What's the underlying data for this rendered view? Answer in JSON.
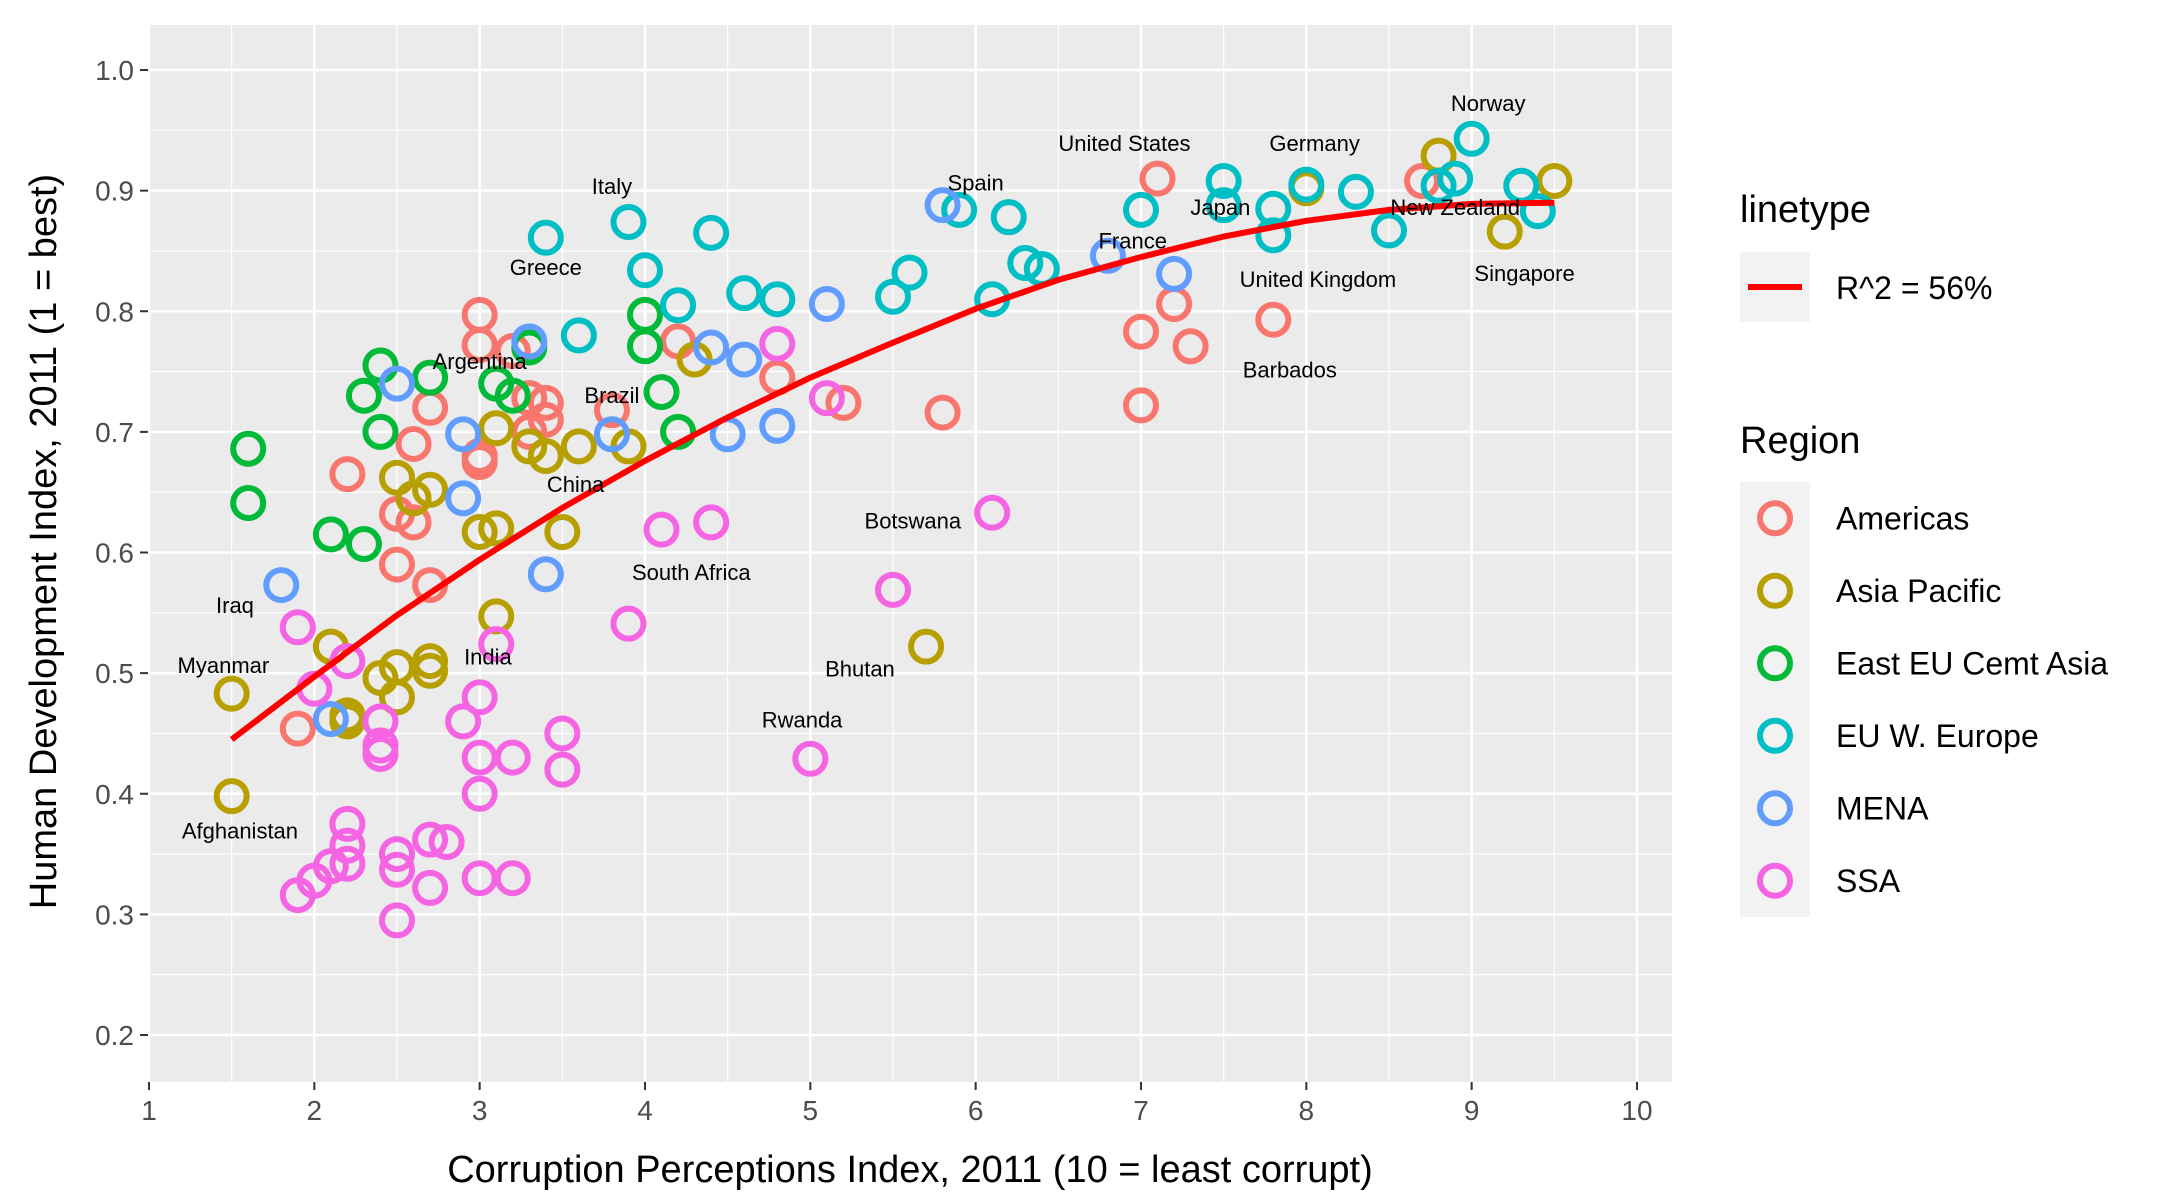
{
  "chart_data": {
    "type": "scatter",
    "xlabel": "Corruption Perceptions Index, 2011 (10 = least corrupt)",
    "ylabel": "Human Development Index, 2011 (1 = best)",
    "xlim": [
      1,
      10
    ],
    "ylim": [
      0.2,
      1.0
    ],
    "x_ticks": [
      "1",
      "2",
      "3",
      "4",
      "5",
      "6",
      "7",
      "8",
      "9",
      "10"
    ],
    "y_ticks": [
      "0.2",
      "0.3",
      "0.4",
      "0.5",
      "0.6",
      "0.7",
      "0.8",
      "0.9",
      "1.0"
    ],
    "grid": true,
    "legend_placement": "right",
    "linetype_legend": {
      "title": "linetype",
      "label": "R^2 = 56%",
      "color": "#ff0000"
    },
    "region_legend": {
      "title": "Region",
      "entries": [
        {
          "name": "Americas",
          "color": "#F8766D"
        },
        {
          "name": "Asia Pacific",
          "color": "#B79F00"
        },
        {
          "name": "East EU Cemt Asia",
          "color": "#00BA38"
        },
        {
          "name": "EU W. Europe",
          "color": "#00BFC4"
        },
        {
          "name": "MENA",
          "color": "#619CFF"
        },
        {
          "name": "SSA",
          "color": "#F564E3"
        }
      ]
    },
    "trend_line": {
      "x": [
        1.5,
        2.0,
        2.5,
        3.0,
        3.5,
        4.0,
        4.5,
        5.0,
        5.5,
        6.0,
        6.5,
        7.0,
        7.5,
        8.0,
        8.5,
        9.0,
        9.5
      ],
      "y": [
        0.445,
        0.497,
        0.548,
        0.594,
        0.637,
        0.676,
        0.712,
        0.745,
        0.774,
        0.802,
        0.826,
        0.845,
        0.862,
        0.875,
        0.884,
        0.889,
        0.89
      ]
    },
    "series": [
      {
        "name": "Americas",
        "points": [
          [
            1.9,
            0.454
          ],
          [
            2.2,
            0.665
          ],
          [
            2.5,
            0.632
          ],
          [
            2.5,
            0.59
          ],
          [
            2.6,
            0.69
          ],
          [
            2.6,
            0.625
          ],
          [
            2.7,
            0.72
          ],
          [
            2.7,
            0.573
          ],
          [
            3.0,
            0.797
          ],
          [
            3.0,
            0.772
          ],
          [
            3.0,
            0.68
          ],
          [
            3.0,
            0.675
          ],
          [
            3.2,
            0.767
          ],
          [
            3.3,
            0.728
          ],
          [
            3.3,
            0.7
          ],
          [
            3.4,
            0.71
          ],
          [
            3.4,
            0.724
          ],
          [
            3.8,
            0.718
          ],
          [
            4.2,
            0.775
          ],
          [
            4.8,
            0.745
          ],
          [
            5.2,
            0.724
          ],
          [
            5.8,
            0.716
          ],
          [
            7.0,
            0.783
          ],
          [
            7.0,
            0.722
          ],
          [
            7.1,
            0.91
          ],
          [
            7.2,
            0.806
          ],
          [
            7.3,
            0.771
          ],
          [
            7.8,
            0.793
          ],
          [
            8.7,
            0.908
          ]
        ]
      },
      {
        "name": "Asia Pacific",
        "points": [
          [
            1.5,
            0.483
          ],
          [
            1.5,
            0.398
          ],
          [
            2.1,
            0.522
          ],
          [
            2.2,
            0.465
          ],
          [
            2.2,
            0.46
          ],
          [
            2.4,
            0.496
          ],
          [
            2.5,
            0.505
          ],
          [
            2.5,
            0.48
          ],
          [
            2.5,
            0.662
          ],
          [
            2.6,
            0.645
          ],
          [
            2.7,
            0.652
          ],
          [
            2.7,
            0.51
          ],
          [
            2.7,
            0.502
          ],
          [
            3.0,
            0.617
          ],
          [
            3.1,
            0.62
          ],
          [
            3.1,
            0.547
          ],
          [
            3.1,
            0.703
          ],
          [
            3.3,
            0.688
          ],
          [
            3.4,
            0.68
          ],
          [
            3.5,
            0.617
          ],
          [
            3.6,
            0.688
          ],
          [
            3.9,
            0.688
          ],
          [
            4.3,
            0.76
          ],
          [
            5.7,
            0.522
          ],
          [
            8.0,
            0.902
          ],
          [
            8.8,
            0.929
          ],
          [
            9.2,
            0.866
          ],
          [
            9.5,
            0.908
          ]
        ]
      },
      {
        "name": "East EU Cemt Asia",
        "points": [
          [
            1.6,
            0.686
          ],
          [
            1.6,
            0.641
          ],
          [
            2.1,
            0.615
          ],
          [
            2.3,
            0.607
          ],
          [
            2.3,
            0.73
          ],
          [
            2.4,
            0.755
          ],
          [
            2.4,
            0.7
          ],
          [
            2.7,
            0.745
          ],
          [
            3.1,
            0.74
          ],
          [
            3.2,
            0.73
          ],
          [
            3.3,
            0.77
          ],
          [
            4.0,
            0.797
          ],
          [
            4.0,
            0.771
          ],
          [
            4.1,
            0.733
          ],
          [
            4.2,
            0.7
          ]
        ]
      },
      {
        "name": "EU W. Europe",
        "points": [
          [
            3.4,
            0.861
          ],
          [
            3.6,
            0.78
          ],
          [
            3.9,
            0.874
          ],
          [
            4.0,
            0.834
          ],
          [
            4.2,
            0.805
          ],
          [
            4.4,
            0.865
          ],
          [
            4.6,
            0.815
          ],
          [
            4.8,
            0.81
          ],
          [
            5.5,
            0.812
          ],
          [
            5.6,
            0.832
          ],
          [
            5.9,
            0.884
          ],
          [
            6.1,
            0.81
          ],
          [
            6.2,
            0.878
          ],
          [
            6.3,
            0.84
          ],
          [
            6.4,
            0.835
          ],
          [
            7.0,
            0.884
          ],
          [
            7.5,
            0.908
          ],
          [
            7.5,
            0.888
          ],
          [
            7.8,
            0.885
          ],
          [
            7.8,
            0.863
          ],
          [
            8.0,
            0.905
          ],
          [
            8.3,
            0.899
          ],
          [
            8.5,
            0.867
          ],
          [
            8.8,
            0.904
          ],
          [
            8.9,
            0.91
          ],
          [
            9.0,
            0.943
          ],
          [
            9.3,
            0.904
          ],
          [
            9.4,
            0.883
          ]
        ]
      },
      {
        "name": "MENA",
        "points": [
          [
            1.8,
            0.573
          ],
          [
            2.1,
            0.462
          ],
          [
            2.5,
            0.74
          ],
          [
            2.9,
            0.698
          ],
          [
            2.9,
            0.645
          ],
          [
            3.3,
            0.775
          ],
          [
            3.4,
            0.582
          ],
          [
            3.8,
            0.698
          ],
          [
            4.4,
            0.77
          ],
          [
            4.5,
            0.698
          ],
          [
            4.6,
            0.76
          ],
          [
            4.8,
            0.705
          ],
          [
            5.1,
            0.806
          ],
          [
            5.8,
            0.888
          ],
          [
            6.8,
            0.846
          ],
          [
            7.2,
            0.831
          ]
        ]
      },
      {
        "name": "SSA",
        "points": [
          [
            1.9,
            0.316
          ],
          [
            1.9,
            0.538
          ],
          [
            2.0,
            0.328
          ],
          [
            2.0,
            0.487
          ],
          [
            2.1,
            0.34
          ],
          [
            2.2,
            0.342
          ],
          [
            2.2,
            0.375
          ],
          [
            2.2,
            0.357
          ],
          [
            2.2,
            0.51
          ],
          [
            2.4,
            0.433
          ],
          [
            2.4,
            0.44
          ],
          [
            2.4,
            0.46
          ],
          [
            2.5,
            0.337
          ],
          [
            2.5,
            0.35
          ],
          [
            2.5,
            0.295
          ],
          [
            2.7,
            0.322
          ],
          [
            2.7,
            0.362
          ],
          [
            2.8,
            0.36
          ],
          [
            2.9,
            0.46
          ],
          [
            3.0,
            0.4
          ],
          [
            3.0,
            0.43
          ],
          [
            3.0,
            0.48
          ],
          [
            3.0,
            0.33
          ],
          [
            3.1,
            0.524
          ],
          [
            3.2,
            0.43
          ],
          [
            3.2,
            0.33
          ],
          [
            3.5,
            0.45
          ],
          [
            3.5,
            0.42
          ],
          [
            3.9,
            0.541
          ],
          [
            4.1,
            0.619
          ],
          [
            4.4,
            0.625
          ],
          [
            4.8,
            0.773
          ],
          [
            5.0,
            0.429
          ],
          [
            5.1,
            0.728
          ],
          [
            5.5,
            0.569
          ],
          [
            6.1,
            0.633
          ]
        ]
      }
    ],
    "annotations": [
      {
        "text": "Norway",
        "x": 9.1,
        "y": 0.966
      },
      {
        "text": "United States",
        "x": 6.9,
        "y": 0.933
      },
      {
        "text": "Germany",
        "x": 8.05,
        "y": 0.933
      },
      {
        "text": "Spain",
        "x": 6.0,
        "y": 0.9
      },
      {
        "text": "Italy",
        "x": 3.8,
        "y": 0.897
      },
      {
        "text": "Japan",
        "x": 7.48,
        "y": 0.88
      },
      {
        "text": "New Zealand",
        "x": 8.9,
        "y": 0.88
      },
      {
        "text": "France",
        "x": 6.95,
        "y": 0.852
      },
      {
        "text": "Greece",
        "x": 3.4,
        "y": 0.83
      },
      {
        "text": "United Kingdom",
        "x": 8.07,
        "y": 0.82
      },
      {
        "text": "Singapore",
        "x": 9.32,
        "y": 0.825
      },
      {
        "text": "Argentina",
        "x": 3.0,
        "y": 0.752
      },
      {
        "text": "Barbados",
        "x": 7.9,
        "y": 0.745
      },
      {
        "text": "Brazil",
        "x": 3.8,
        "y": 0.724
      },
      {
        "text": "China",
        "x": 3.58,
        "y": 0.65
      },
      {
        "text": "Botswana",
        "x": 5.62,
        "y": 0.62
      },
      {
        "text": "South Africa",
        "x": 4.28,
        "y": 0.577
      },
      {
        "text": "Iraq",
        "x": 1.52,
        "y": 0.55
      },
      {
        "text": "Myanmar",
        "x": 1.45,
        "y": 0.5
      },
      {
        "text": "India",
        "x": 3.05,
        "y": 0.507
      },
      {
        "text": "Bhutan",
        "x": 5.3,
        "y": 0.497
      },
      {
        "text": "Rwanda",
        "x": 4.95,
        "y": 0.455
      },
      {
        "text": "Afghanistan",
        "x": 1.55,
        "y": 0.363
      }
    ]
  }
}
